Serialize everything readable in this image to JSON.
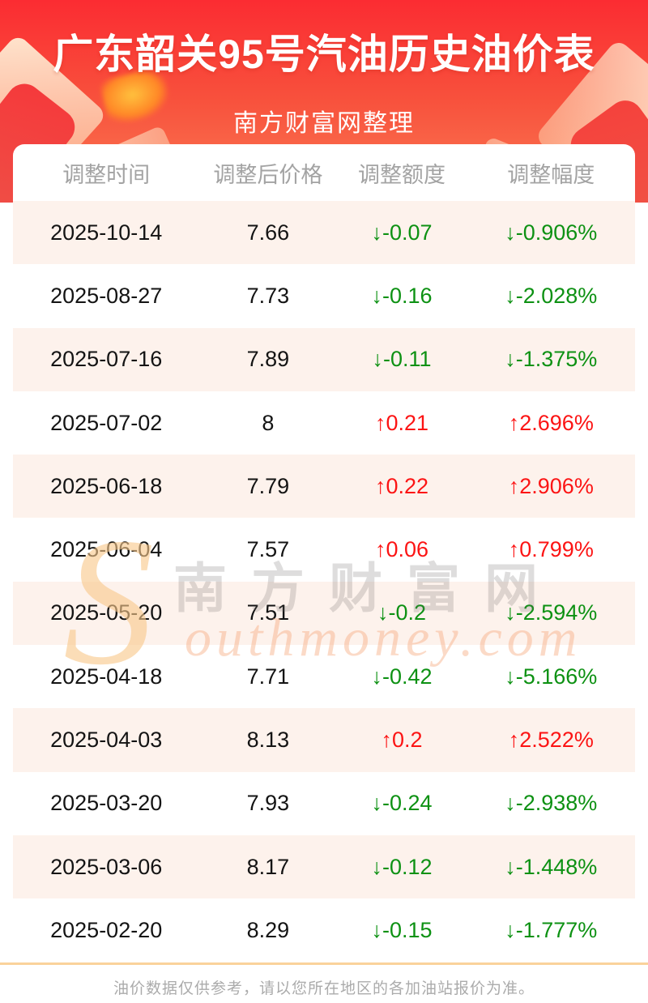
{
  "page": {
    "title": "广东韶关95号汽油历史油价表",
    "subtitle": "南方财富网整理",
    "footer_note": "油价数据仅供参考，请以您所在地区的各加油站报价为准。"
  },
  "watermark": {
    "initial": "S",
    "cn": "南方财富网",
    "en": "outhmoney.com"
  },
  "colors": {
    "up_red": "#fc1414",
    "down_green": "#0d9113",
    "header_gradient_top": "#fb2c32",
    "header_gradient_bottom": "#fa7b54",
    "row_alt_bg": "#fdf2ec",
    "divider_orange": "#fad29b"
  },
  "table": {
    "columns": [
      "调整时间",
      "调整后价格",
      "调整额度",
      "调整幅度"
    ],
    "rows": [
      {
        "date": "2025-10-14",
        "price": "7.66",
        "change": "↓-0.07",
        "percent": "↓-0.906%",
        "direction": "down"
      },
      {
        "date": "2025-08-27",
        "price": "7.73",
        "change": "↓-0.16",
        "percent": "↓-2.028%",
        "direction": "down"
      },
      {
        "date": "2025-07-16",
        "price": "7.89",
        "change": "↓-0.11",
        "percent": "↓-1.375%",
        "direction": "down"
      },
      {
        "date": "2025-07-02",
        "price": "8",
        "change": "↑0.21",
        "percent": "↑2.696%",
        "direction": "up"
      },
      {
        "date": "2025-06-18",
        "price": "7.79",
        "change": "↑0.22",
        "percent": "↑2.906%",
        "direction": "up"
      },
      {
        "date": "2025-06-04",
        "price": "7.57",
        "change": "↑0.06",
        "percent": "↑0.799%",
        "direction": "up"
      },
      {
        "date": "2025-05-20",
        "price": "7.51",
        "change": "↓-0.2",
        "percent": "↓-2.594%",
        "direction": "down"
      },
      {
        "date": "2025-04-18",
        "price": "7.71",
        "change": "↓-0.42",
        "percent": "↓-5.166%",
        "direction": "down"
      },
      {
        "date": "2025-04-03",
        "price": "8.13",
        "change": "↑0.2",
        "percent": "↑2.522%",
        "direction": "up"
      },
      {
        "date": "2025-03-20",
        "price": "7.93",
        "change": "↓-0.24",
        "percent": "↓-2.938%",
        "direction": "down"
      },
      {
        "date": "2025-03-06",
        "price": "8.17",
        "change": "↓-0.12",
        "percent": "↓-1.448%",
        "direction": "down"
      },
      {
        "date": "2025-02-20",
        "price": "8.29",
        "change": "↓-0.15",
        "percent": "↓-1.777%",
        "direction": "down"
      }
    ]
  }
}
